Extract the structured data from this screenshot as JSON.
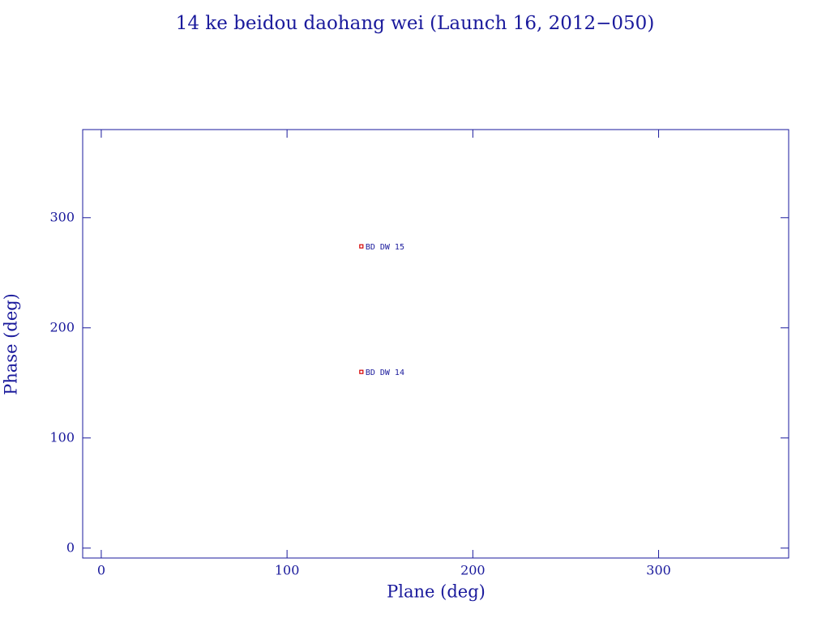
{
  "chart_data": {
    "type": "scatter",
    "title": "14 ke beidou daohang wei (Launch 16, 2012−050)",
    "x_label": "Plane (deg)",
    "y_label": "Phase (deg)",
    "xlim": [
      -10,
      370
    ],
    "ylim": [
      -9,
      380
    ],
    "xticks": [
      0,
      100,
      200,
      300
    ],
    "yticks": [
      0,
      100,
      200,
      300
    ],
    "grid": false,
    "series": [
      {
        "color": "#d40000",
        "x": [
          140,
          140
        ],
        "values": [
          274,
          160
        ],
        "point_labels": [
          "BD DW 15",
          "BD DW 14"
        ]
      }
    ]
  }
}
